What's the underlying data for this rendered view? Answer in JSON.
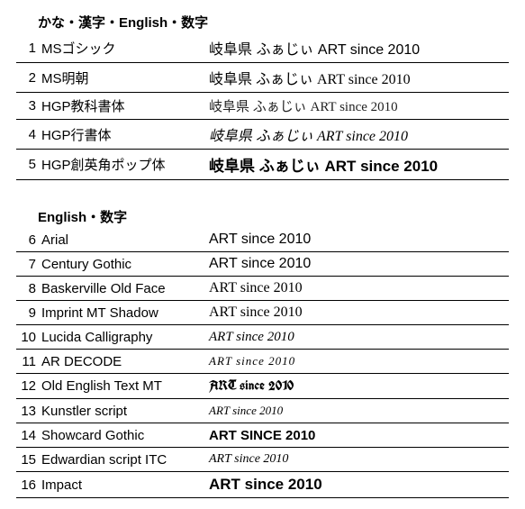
{
  "colors": {
    "text": "#000000",
    "background": "#ffffff",
    "border": "#000000"
  },
  "section1": {
    "header": "かな・漢字・English・数字",
    "rows": [
      {
        "num": "1",
        "name": "MSゴシック",
        "sample": "岐阜県 ふぁじぃ ART since 2010"
      },
      {
        "num": "2",
        "name": "MS明朝",
        "sample": "岐阜県 ふぁじぃ ART since 2010"
      },
      {
        "num": "3",
        "name": "HGP教科書体",
        "sample": "岐阜県 ふぁじぃ ART since 2010"
      },
      {
        "num": "4",
        "name": "HGP行書体",
        "sample": "岐阜県 ふぁじぃ ART since 2010"
      },
      {
        "num": "5",
        "name": "HGP創英角ポップ体",
        "sample": "岐阜県 ふぁじぃ ART since 2010"
      }
    ]
  },
  "section2": {
    "header": "English・数字",
    "rows": [
      {
        "num": "6",
        "name": "Arial",
        "sample": "ART since 2010"
      },
      {
        "num": "7",
        "name": "Century Gothic",
        "sample": "ART since 2010"
      },
      {
        "num": "8",
        "name": "Baskerville Old Face",
        "sample": "ART since 2010"
      },
      {
        "num": "9",
        "name": "Imprint MT Shadow",
        "sample": "ART since 2010"
      },
      {
        "num": "10",
        "name": "Lucida Calligraphy",
        "sample": "ART since 2010"
      },
      {
        "num": "11",
        "name": "AR DECODE",
        "sample": "ART since 2010"
      },
      {
        "num": "12",
        "name": "Old English Text MT",
        "sample": "ART since 2010"
      },
      {
        "num": "13",
        "name": "Kunstler script",
        "sample": "ART since 2010"
      },
      {
        "num": "14",
        "name": "Showcard Gothic",
        "sample": "ART SINCE 2010"
      },
      {
        "num": "15",
        "name": "Edwardian script ITC",
        "sample": "ART since 2010"
      },
      {
        "num": "16",
        "name": "Impact",
        "sample": "ART since 2010"
      }
    ]
  }
}
